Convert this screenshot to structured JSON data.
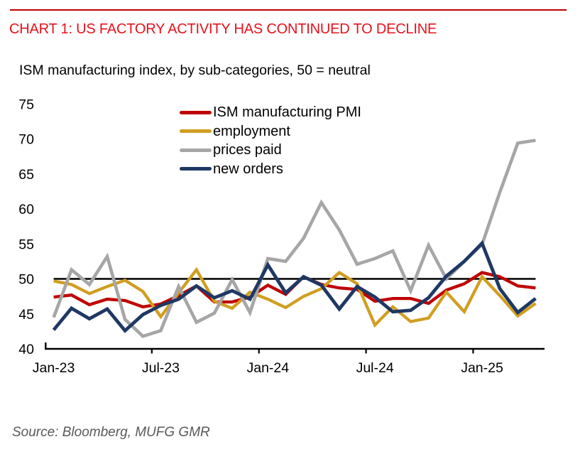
{
  "report": {
    "title": "CHART 1: US FACTORY ACTIVITY HAS CONTINUED TO DECLINE",
    "title_color": "#E8111C",
    "rule_color": "#C00000"
  },
  "chart": {
    "subtitle": "ISM manufacturing index, by sub-categories, 50 = neutral"
  },
  "chart_data": {
    "type": "line",
    "title": "CHART 1: US FACTORY ACTIVITY HAS CONTINUED TO DECLINE",
    "subtitle": "ISM manufacturing index, by sub-categories, 50 = neutral",
    "x": [
      "Jan-23",
      "Feb-23",
      "Mar-23",
      "Apr-23",
      "May-23",
      "Jun-23",
      "Jul-23",
      "Aug-23",
      "Sep-23",
      "Oct-23",
      "Nov-23",
      "Dec-23",
      "Jan-24",
      "Feb-24",
      "Mar-24",
      "Apr-24",
      "May-24",
      "Jun-24",
      "Jul-24",
      "Aug-24",
      "Sep-24",
      "Oct-24",
      "Nov-24",
      "Dec-24",
      "Jan-25",
      "Feb-25",
      "Mar-25",
      "Apr-25"
    ],
    "x_tick_labels": [
      "Jan-23",
      "Jul-23",
      "Jan-24",
      "Jul-24",
      "Jan-25"
    ],
    "y_ticks": [
      40,
      45,
      50,
      55,
      60,
      65,
      70,
      75
    ],
    "ylim": [
      40,
      75
    ],
    "grid": false,
    "legend_position": "inside-top",
    "reference_line": {
      "value": 50,
      "color": "#000000",
      "meaning": "50 = neutral"
    },
    "series": [
      {
        "name": "ISM manufacturing PMI",
        "color": "#C00000",
        "values": [
          47.4,
          47.7,
          46.3,
          47.1,
          46.9,
          46.0,
          46.4,
          47.6,
          49.0,
          46.7,
          46.7,
          47.4,
          49.1,
          47.8,
          50.3,
          49.2,
          48.7,
          48.5,
          46.8,
          47.2,
          47.2,
          46.5,
          48.4,
          49.3,
          50.9,
          50.3,
          49.0,
          48.7
        ]
      },
      {
        "name": "employment",
        "color": "#D09E21",
        "values": [
          49.7,
          49.2,
          47.9,
          48.9,
          49.8,
          48.2,
          44.6,
          48.0,
          51.3,
          46.8,
          45.8,
          48.1,
          47.1,
          45.9,
          47.5,
          48.6,
          50.9,
          49.3,
          43.4,
          46.0,
          43.9,
          44.4,
          48.1,
          45.3,
          50.3,
          47.6,
          44.7,
          46.5
        ]
      },
      {
        "name": "prices paid",
        "color": "#A6A6A6",
        "values": [
          44.5,
          51.3,
          49.2,
          53.2,
          44.2,
          41.8,
          42.6,
          48.9,
          43.8,
          45.1,
          49.9,
          45.2,
          52.9,
          52.5,
          55.8,
          60.9,
          57.0,
          52.1,
          52.9,
          54.0,
          48.3,
          54.8,
          50.0,
          52.5,
          54.9,
          62.4,
          69.4,
          69.8
        ]
      },
      {
        "name": "new orders",
        "color": "#1F3864",
        "values": [
          42.7,
          45.8,
          44.3,
          45.7,
          42.6,
          44.9,
          46.2,
          47.1,
          49.0,
          47.3,
          48.3,
          47.1,
          52.0,
          48.0,
          50.3,
          49.1,
          45.7,
          48.9,
          47.4,
          45.3,
          45.5,
          47.3,
          50.4,
          52.5,
          55.1,
          48.6,
          45.2,
          47.2
        ]
      }
    ]
  },
  "footer": {
    "source": "Source: Bloomberg, MUFG GMR"
  }
}
